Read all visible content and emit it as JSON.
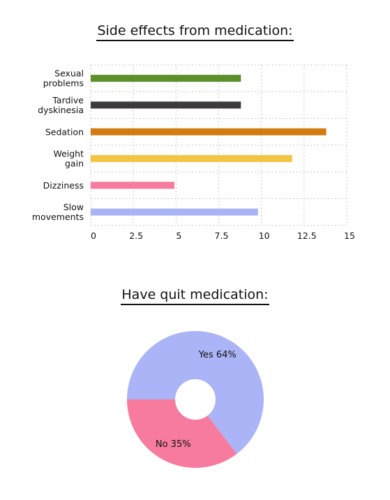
{
  "chart_data": [
    {
      "type": "bar",
      "orientation": "horizontal",
      "title": "Side effects from medication:",
      "categories": [
        [
          "Sexual",
          "problems"
        ],
        [
          "Tardive",
          "dyskinesia"
        ],
        [
          "Sedation"
        ],
        [
          "Weight",
          "gain"
        ],
        [
          "Dizziness"
        ],
        [
          "Slow",
          "movements"
        ]
      ],
      "values": [
        8.8,
        8.8,
        13.8,
        11.8,
        4.9,
        9.8
      ],
      "colors": [
        "#5a8f29",
        "#3f3b3c",
        "#d07c10",
        "#f4c542",
        "#f77b9e",
        "#a9b4f5"
      ],
      "xlim": [
        0,
        15
      ],
      "xticks": [
        "0",
        "2.5",
        "5",
        "7.5",
        "10",
        "12.5",
        "15"
      ],
      "grid": true,
      "legend": "none"
    },
    {
      "type": "pie",
      "variant": "donut",
      "title": "Have quit medication:",
      "slices": [
        {
          "label": "Yes 64%",
          "value": 64,
          "color": "#abb4f6"
        },
        {
          "label": "No 35%",
          "value": 35,
          "color": "#f77b9e"
        }
      ]
    }
  ]
}
